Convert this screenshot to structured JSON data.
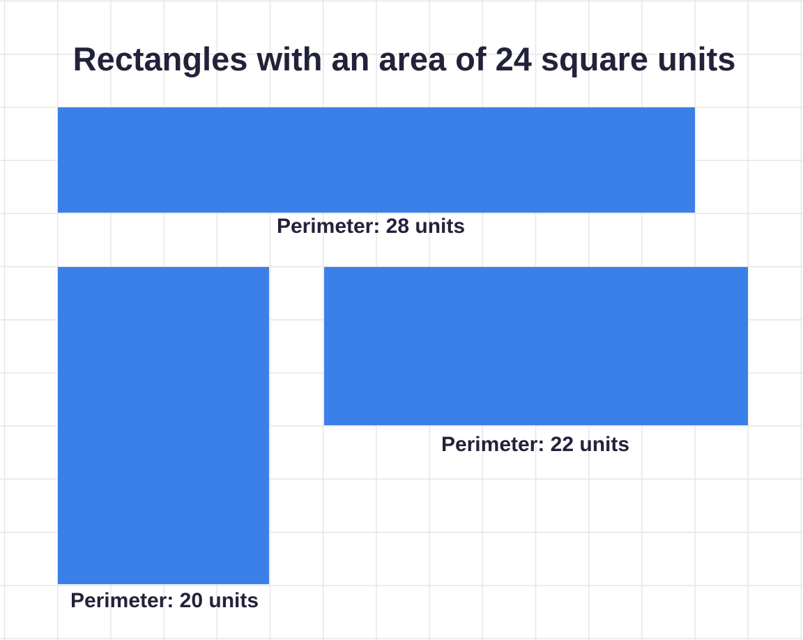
{
  "title": "Rectangles with an area of 24 square units",
  "colors": {
    "rectangle_fill": "#3b80e8",
    "text": "#22223a",
    "grid": "#e6e6e6",
    "background": "#ffffff"
  },
  "grid": {
    "show": true
  },
  "rectangles": [
    {
      "width_units": 12,
      "height_units": 2,
      "area": 24,
      "perimeter": 28,
      "label": "Perimeter: 28 units"
    },
    {
      "width_units": 4,
      "height_units": 6,
      "area": 24,
      "perimeter": 20,
      "label": "Perimeter: 20 units"
    },
    {
      "width_units": 8,
      "height_units": 3,
      "area": 24,
      "perimeter": 22,
      "label": "Perimeter: 22 units"
    }
  ]
}
